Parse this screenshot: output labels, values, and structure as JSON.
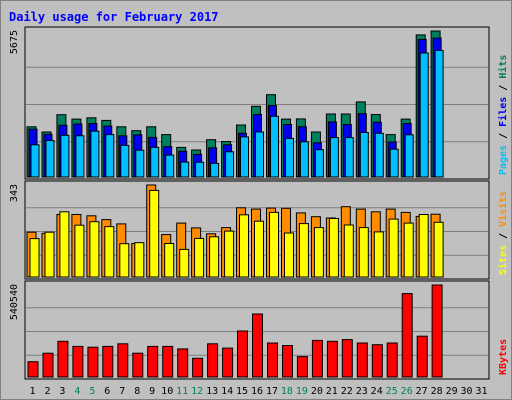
{
  "title": "Daily usage for February 2017",
  "colors": {
    "title": "#0000ff",
    "background": "#c0c0c0",
    "panel": "#c0c0c0",
    "panel_border": "#000000",
    "grid": "#7f7f7f",
    "hits": "#007f5f",
    "files": "#0000ee",
    "pages": "#00bfff",
    "visits": "#ff8c00",
    "sites": "#ffff00",
    "kbytes": "#ff0000",
    "weekend_day": "#007f5f",
    "weekday": "#000000"
  },
  "chart_data": {
    "type": "bar",
    "title": "Daily usage for February 2017",
    "categories": [
      "1",
      "2",
      "3",
      "4",
      "5",
      "6",
      "7",
      "8",
      "9",
      "10",
      "11",
      "12",
      "13",
      "14",
      "15",
      "16",
      "17",
      "18",
      "19",
      "20",
      "21",
      "22",
      "23",
      "24",
      "25",
      "26",
      "27",
      "28",
      "29",
      "30",
      "31"
    ],
    "weekend_days": [
      "4",
      "5",
      "11",
      "12",
      "18",
      "19",
      "25",
      "26"
    ],
    "legend_placement": "right (vertical labels beside each panel)",
    "grid": true,
    "panels": [
      {
        "id": "requests",
        "ymax_label": "5675",
        "ylim": [
          0,
          5675
        ],
        "legend": [
          {
            "key": "pages",
            "label": "Pages"
          },
          {
            "key": "files",
            "label": "Files"
          },
          {
            "key": "hits",
            "label": "Hits"
          }
        ],
        "series": [
          {
            "name": "Hits",
            "key": "hits",
            "values": [
              1950,
              1750,
              2420,
              2250,
              2300,
              2200,
              1950,
              1800,
              1950,
              1650,
              1150,
              1050,
              1450,
              1380,
              2020,
              2750,
              3200,
              2250,
              2260,
              1750,
              2450,
              2450,
              2920,
              2430,
              1650,
              2250,
              5525,
              5675,
              null,
              null,
              null
            ]
          },
          {
            "name": "Files",
            "key": "files",
            "values": [
              1860,
              1660,
              2010,
              2060,
              2080,
              1980,
              1600,
              1640,
              1540,
              1180,
              1000,
              880,
              1130,
              1250,
              1700,
              2430,
              2780,
              2040,
              1950,
              1330,
              2140,
              2040,
              2460,
              2130,
              1360,
              2080,
              5350,
              5400,
              null,
              null,
              null
            ]
          },
          {
            "name": "Pages",
            "key": "pages",
            "values": [
              1250,
              1420,
              1620,
              1600,
              1780,
              1650,
              1230,
              1040,
              1150,
              850,
              580,
              570,
              530,
              980,
              1560,
              1750,
              2360,
              1500,
              1370,
              1060,
              1530,
              1530,
              1730,
              1700,
              1080,
              1640,
              4820,
              4920,
              null,
              null,
              null
            ]
          }
        ]
      },
      {
        "id": "visitors",
        "ymax_label": "343",
        "ylim": [
          0,
          343
        ],
        "legend": [
          {
            "key": "sites",
            "label": "Sites"
          },
          {
            "key": "visits",
            "label": "Visits"
          }
        ],
        "series": [
          {
            "name": "Visits",
            "key": "visits",
            "values": [
              167,
              163,
              233,
              233,
              228,
              214,
              198,
              125,
              343,
              158,
              201,
              183,
              161,
              184,
              258,
              253,
              257,
              256,
              239,
              225,
              220,
              262,
              253,
              243,
              253,
              241,
              226,
              234,
              null,
              null,
              null
            ]
          },
          {
            "name": "Sites",
            "key": "sites",
            "values": [
              143,
              167,
              243,
              193,
              206,
              188,
              124,
              128,
              323,
              125,
              103,
              144,
              150,
              171,
              232,
              208,
              241,
              164,
              199,
              184,
              218,
              194,
              184,
              168,
              216,
              201,
              233,
              204,
              null,
              null,
              null
            ]
          }
        ]
      },
      {
        "id": "bandwidth",
        "ymax_label": "540540",
        "ylim": [
          0,
          540540
        ],
        "legend": [
          {
            "key": "kbytes",
            "label": "KBytes"
          }
        ],
        "series": [
          {
            "name": "KBytes",
            "key": "kbytes",
            "values": [
              90000,
              140000,
              210000,
              180000,
              175000,
              180000,
              195000,
              140000,
              180000,
              180000,
              165000,
              110000,
              195000,
              170000,
              270000,
              370000,
              200000,
              185000,
              120000,
              215000,
              210000,
              220000,
              200000,
              190000,
              200000,
              490000,
              240000,
              540540,
              null,
              null,
              null
            ]
          }
        ]
      }
    ]
  }
}
